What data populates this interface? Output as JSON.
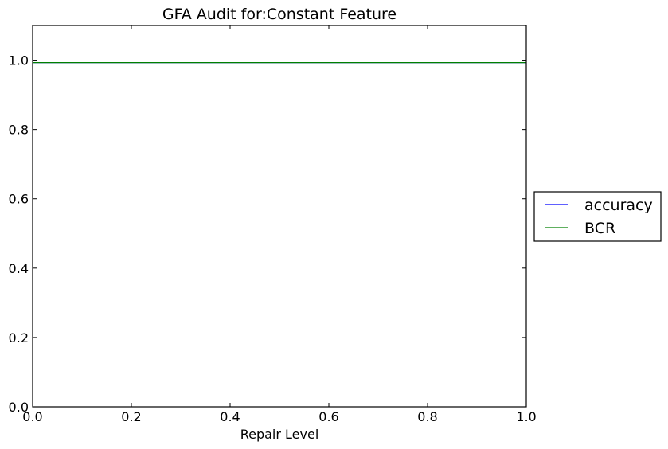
{
  "chart_data": {
    "type": "line",
    "title": "GFA Audit for:Constant Feature",
    "xlabel": "Repair Level",
    "ylabel": "",
    "xlim": [
      0.0,
      1.0
    ],
    "ylim": [
      0.0,
      1.1
    ],
    "xticks": [
      "0.0",
      "0.2",
      "0.4",
      "0.6",
      "0.8",
      "1.0"
    ],
    "yticks": [
      "0.0",
      "0.2",
      "0.4",
      "0.6",
      "0.8",
      "1.0"
    ],
    "grid": false,
    "legend_position": "outside-right",
    "x": [
      0.0,
      0.1,
      0.2,
      0.3,
      0.4,
      0.5,
      0.6,
      0.7,
      0.8,
      0.9,
      1.0
    ],
    "series": [
      {
        "name": "accuracy",
        "color": "#0000ff",
        "values": [
          0.993,
          0.993,
          0.993,
          0.993,
          0.993,
          0.993,
          0.993,
          0.993,
          0.993,
          0.993,
          0.993
        ]
      },
      {
        "name": "BCR",
        "color": "#008000",
        "values": [
          0.993,
          0.993,
          0.993,
          0.993,
          0.993,
          0.993,
          0.993,
          0.993,
          0.993,
          0.993,
          0.993
        ]
      }
    ]
  }
}
